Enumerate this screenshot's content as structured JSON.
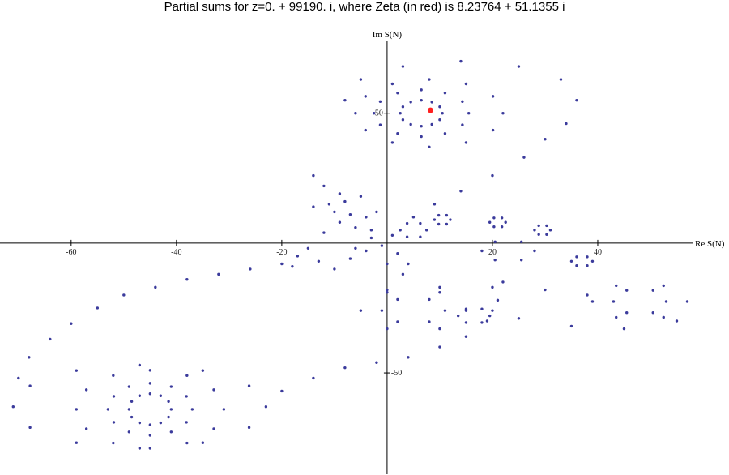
{
  "chart_data": {
    "type": "scatter",
    "title": "Partial sums for z=0. + 99190. i, where Zeta (in red) is 8.23764 + 51.1355 i",
    "x_label": "Re S(N)",
    "y_label": "Im S(N)",
    "color": "#3b3b9c",
    "xlim": [
      -71.2,
      58
    ],
    "ylim": [
      -89,
      78
    ],
    "xticks": [
      -60,
      -40,
      -20,
      20,
      40
    ],
    "yticks": [
      50,
      -50
    ],
    "x": [
      -41,
      -41.5,
      -43,
      -45,
      -47,
      -48.5,
      -49,
      -48.5,
      -47,
      -45,
      -43,
      -41.5,
      -37,
      -38.1,
      -41,
      -45,
      -49,
      -51.9,
      -53,
      -51.9,
      -49,
      -45,
      -41,
      -38.1,
      -31,
      -32.9,
      -38,
      -45,
      -52,
      -57.1,
      -59,
      -57.1,
      -52,
      -45,
      -38,
      -32.9,
      -23,
      -26.2,
      -35,
      -47,
      -59,
      -67.8,
      -71,
      -67.8,
      -59,
      -47,
      -35,
      -26.2,
      -70,
      -68,
      -64,
      -60,
      -55,
      -50,
      -44,
      -38,
      -32,
      -26,
      -20,
      -20,
      -14,
      -8,
      -2,
      4,
      10,
      15,
      19,
      21,
      22,
      10.5,
      10,
      8.5,
      6.5,
      4.5,
      3,
      2.5,
      3,
      4.5,
      6.5,
      8.5,
      10,
      15.5,
      14.3,
      11,
      6.5,
      2,
      -1.3,
      -2.5,
      -1.3,
      2,
      6.5,
      11,
      14.3,
      22,
      20.1,
      15,
      8,
      1,
      -4.1,
      -6,
      -4.1,
      1,
      8,
      15,
      20.1,
      -8,
      -5,
      3,
      14,
      25,
      33,
      36,
      34,
      30,
      26,
      20,
      14,
      9,
      5,
      7.5,
      6.3,
      3.8,
      2.5,
      3.8,
      6.3,
      28,
      25.5,
      20.5,
      18,
      20.5,
      25.5,
      11,
      8,
      2,
      -1,
      2,
      8,
      19.5,
      18,
      15,
      13.5,
      15,
      18,
      53,
      50.5,
      45.5,
      43,
      45.5,
      50.5,
      39,
      38,
      36,
      35,
      36,
      38,
      12,
      11.3,
      9.8,
      9,
      9.8,
      11.3,
      22.5,
      21.8,
      20.3,
      19.5,
      20.3,
      21.8,
      31,
      30.3,
      28.8,
      28,
      28.8,
      30.3,
      15,
      10,
      0,
      -5,
      0,
      10,
      57,
      52.5,
      43.5,
      39,
      43.5,
      52.5,
      0,
      10,
      20,
      30,
      38,
      55,
      45,
      35,
      25,
      20,
      -14,
      -12,
      -9,
      -5,
      -8,
      -11,
      -14,
      -10,
      -7,
      -4,
      -2,
      -9,
      -6,
      -3,
      -12,
      -15,
      -17,
      -13,
      -18,
      -10,
      -7,
      -4,
      -1,
      2,
      4,
      3,
      0,
      -3,
      1,
      -6
    ],
    "values": [
      -64,
      -61,
      -58.8,
      -58,
      -58.8,
      -61,
      -64,
      -67,
      -69.2,
      -70,
      -69.2,
      -67,
      -64,
      -59,
      -55.3,
      -54,
      -55.3,
      -59,
      -64,
      -69,
      -72.7,
      -74,
      -72.7,
      -69,
      -64,
      -56.5,
      -51,
      -49,
      -51,
      -56.5,
      -64,
      -71.5,
      -77,
      -79,
      -77,
      -71.5,
      -63,
      -55,
      -49.1,
      -47,
      -49.1,
      -55,
      -63,
      -71,
      -76.9,
      -79,
      -76.9,
      -71,
      -52,
      -44,
      -37,
      -31,
      -25,
      -20,
      -17,
      -14,
      -12,
      -10,
      -8,
      -57,
      -52,
      -48,
      -46,
      -44,
      -40,
      -36,
      -30,
      -22,
      -15,
      50,
      52.5,
      54.3,
      55,
      54.3,
      52.5,
      50,
      47.5,
      45.7,
      45,
      45.7,
      47.5,
      50,
      54.5,
      57.8,
      59,
      57.8,
      54.5,
      50,
      45.5,
      42.2,
      41,
      42.2,
      45.5,
      50,
      56.5,
      61.3,
      63,
      61.3,
      56.5,
      50,
      43.5,
      38.7,
      37,
      38.7,
      43.5,
      55,
      63,
      68,
      70,
      68,
      63,
      55,
      46,
      40,
      33,
      26,
      20,
      15,
      10,
      5,
      7.6,
      7.6,
      5,
      2.4,
      2.4,
      -3,
      0.5,
      0.5,
      -3,
      -6.5,
      -6.5,
      -26,
      -21.7,
      -21.7,
      -26,
      -30.3,
      -30.3,
      -28,
      -25.4,
      -25.4,
      -28,
      -30.6,
      -30.6,
      -22.5,
      -18.2,
      -18.2,
      -22.5,
      -26.8,
      -26.8,
      -7,
      -5.3,
      -5.3,
      -7,
      -8.7,
      -8.7,
      9,
      10.7,
      10.7,
      9,
      7.3,
      7.3,
      8,
      9.7,
      9.7,
      8,
      6.3,
      6.3,
      5,
      6.7,
      6.7,
      5,
      3.3,
      3.3,
      -26,
      -19,
      -19,
      -26,
      -33,
      -33,
      -22.5,
      -16.4,
      -16.4,
      -22.5,
      -28.6,
      -28.6,
      -18,
      -17,
      -17,
      -18,
      -20,
      -30,
      -33,
      -32,
      -29,
      -26,
      26,
      22,
      19,
      18,
      16,
      15,
      14,
      12,
      11,
      10,
      12,
      8,
      6,
      5,
      4,
      -2,
      -5,
      -7,
      -9,
      -10,
      -6,
      -3,
      -1,
      -4,
      -8,
      -12,
      -8,
      2,
      3,
      -2
    ],
    "highlight": {
      "x": 8.23764,
      "y": 51.1355,
      "color": "#ff2020"
    }
  }
}
